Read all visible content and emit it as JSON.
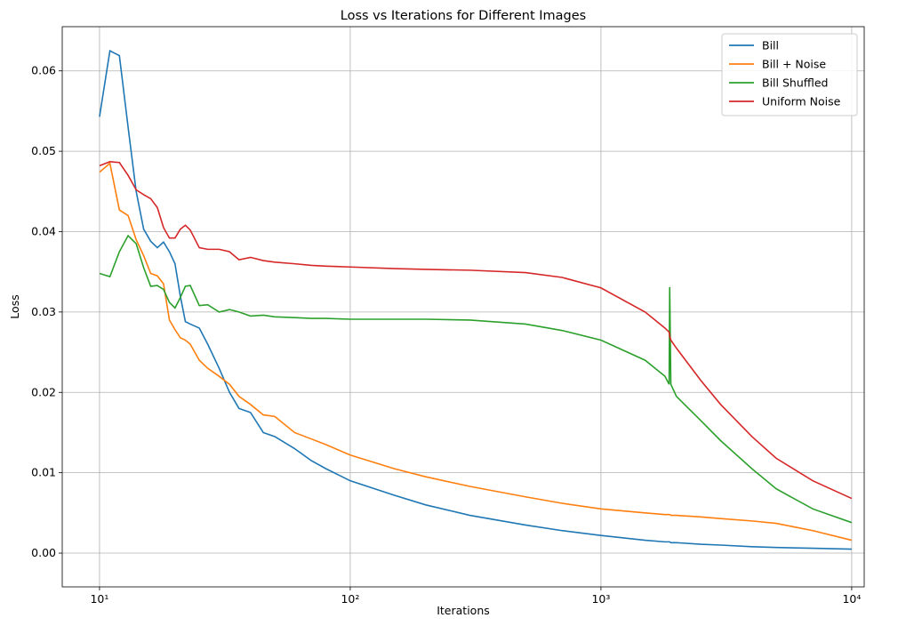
{
  "chart_data": {
    "type": "line",
    "title": "Loss vs Iterations for Different Images",
    "x_label": "Iterations",
    "y_label": "Loss",
    "x_scale": "log",
    "grid": true,
    "legend": "upper right",
    "x": [
      10,
      11,
      12,
      13,
      14,
      15,
      16,
      17,
      18,
      19,
      20,
      21,
      22,
      23,
      25,
      27,
      30,
      33,
      36,
      40,
      45,
      50,
      60,
      70,
      80,
      100,
      150,
      200,
      300,
      500,
      700,
      1000,
      1500,
      1800,
      1870,
      1880,
      1900,
      2000,
      2500,
      3000,
      4000,
      5000,
      7000,
      10000
    ],
    "series": [
      {
        "name": "Bill",
        "color": "#1f77b4",
        "values": [
          0.0543,
          0.0625,
          0.0619,
          0.053,
          0.045,
          0.0403,
          0.0388,
          0.038,
          0.0387,
          0.0375,
          0.036,
          0.032,
          0.0288,
          0.0285,
          0.028,
          0.026,
          0.023,
          0.02,
          0.018,
          0.0175,
          0.015,
          0.0145,
          0.013,
          0.0115,
          0.0105,
          0.009,
          0.0072,
          0.006,
          0.0047,
          0.0035,
          0.0028,
          0.0022,
          0.0016,
          0.0014,
          0.0014,
          0.0014,
          0.0013,
          0.0013,
          0.0011,
          0.001,
          0.0008,
          0.0007,
          0.0006,
          0.0005
        ]
      },
      {
        "name": "Bill + Noise",
        "color": "#ff7f0e",
        "values": [
          0.0474,
          0.0485,
          0.0427,
          0.042,
          0.039,
          0.037,
          0.0348,
          0.0345,
          0.0335,
          0.029,
          0.0278,
          0.0268,
          0.0265,
          0.026,
          0.024,
          0.023,
          0.022,
          0.021,
          0.0195,
          0.0185,
          0.0172,
          0.017,
          0.015,
          0.0142,
          0.0135,
          0.0122,
          0.0105,
          0.0095,
          0.0083,
          0.007,
          0.0062,
          0.0055,
          0.005,
          0.0048,
          0.0048,
          0.0048,
          0.0047,
          0.0047,
          0.0045,
          0.0043,
          0.004,
          0.0037,
          0.0028,
          0.0016
        ]
      },
      {
        "name": "Bill Shuffled",
        "color": "#2ca02c",
        "values": [
          0.0348,
          0.0344,
          0.0375,
          0.0395,
          0.0385,
          0.0355,
          0.0332,
          0.0333,
          0.0328,
          0.0312,
          0.0305,
          0.0318,
          0.0332,
          0.0333,
          0.0308,
          0.0309,
          0.03,
          0.0303,
          0.03,
          0.0295,
          0.0296,
          0.0294,
          0.0293,
          0.0292,
          0.0292,
          0.0291,
          0.0291,
          0.0291,
          0.029,
          0.0285,
          0.0277,
          0.0265,
          0.024,
          0.022,
          0.021,
          0.0331,
          0.021,
          0.0195,
          0.0165,
          0.014,
          0.0105,
          0.008,
          0.0055,
          0.0038
        ]
      },
      {
        "name": "Uniform Noise",
        "color": "#d62728",
        "values": [
          0.0482,
          0.0487,
          0.0486,
          0.047,
          0.0452,
          0.0446,
          0.0441,
          0.043,
          0.0405,
          0.0392,
          0.0392,
          0.0403,
          0.0408,
          0.0402,
          0.038,
          0.0378,
          0.0378,
          0.0375,
          0.0365,
          0.0368,
          0.0364,
          0.0362,
          0.036,
          0.0358,
          0.0357,
          0.0356,
          0.0354,
          0.0353,
          0.0352,
          0.0349,
          0.0343,
          0.033,
          0.03,
          0.028,
          0.0275,
          0.027,
          0.0265,
          0.0255,
          0.0215,
          0.0185,
          0.0145,
          0.0118,
          0.009,
          0.0068
        ]
      }
    ],
    "xlim": [
      7.1,
      11220
    ],
    "xticks": [
      {
        "value": 10,
        "label": "10¹"
      },
      {
        "value": 100,
        "label": "10²"
      },
      {
        "value": 1000,
        "label": "10³"
      },
      {
        "value": 10000,
        "label": "10⁴"
      }
    ],
    "ylim": [
      -0.0042,
      0.0655
    ],
    "yticks": [
      {
        "value": 0,
        "label": "0.00"
      },
      0.01,
      0.02,
      0.03,
      0.04,
      0.05,
      0.06
    ]
  }
}
